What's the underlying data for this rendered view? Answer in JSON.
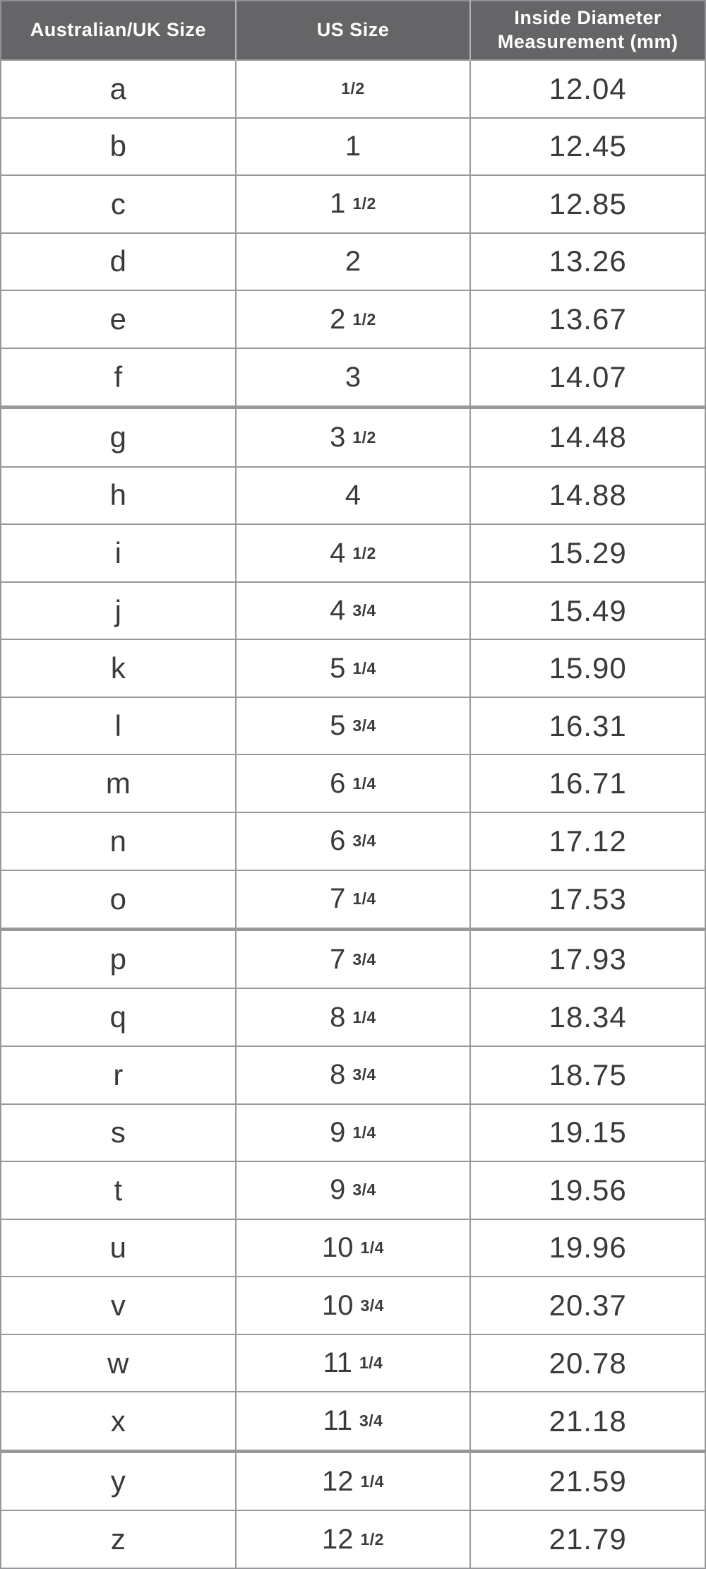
{
  "table": {
    "columns": [
      "Australian/UK Size",
      "US Size",
      "Inside Diameter Measurement (mm)"
    ],
    "rows": [
      {
        "uk": "a",
        "us_whole": "",
        "us_frac": "1/2",
        "diameter_mm": "12.04"
      },
      {
        "uk": "b",
        "us_whole": "1",
        "us_frac": "",
        "diameter_mm": "12.45"
      },
      {
        "uk": "c",
        "us_whole": "1",
        "us_frac": "1/2",
        "diameter_mm": "12.85"
      },
      {
        "uk": "d",
        "us_whole": "2",
        "us_frac": "",
        "diameter_mm": "13.26"
      },
      {
        "uk": "e",
        "us_whole": "2",
        "us_frac": "1/2",
        "diameter_mm": "13.67"
      },
      {
        "uk": "f",
        "us_whole": "3",
        "us_frac": "",
        "diameter_mm": "14.07"
      },
      {
        "uk": "g",
        "us_whole": "3",
        "us_frac": "1/2",
        "diameter_mm": "14.48"
      },
      {
        "uk": "h",
        "us_whole": "4",
        "us_frac": "",
        "diameter_mm": "14.88"
      },
      {
        "uk": "i",
        "us_whole": "4",
        "us_frac": "1/2",
        "diameter_mm": "15.29"
      },
      {
        "uk": "j",
        "us_whole": "4",
        "us_frac": "3/4",
        "diameter_mm": "15.49"
      },
      {
        "uk": "k",
        "us_whole": "5",
        "us_frac": "1/4",
        "diameter_mm": "15.90"
      },
      {
        "uk": "l",
        "us_whole": "5",
        "us_frac": "3/4",
        "diameter_mm": "16.31"
      },
      {
        "uk": "m",
        "us_whole": "6",
        "us_frac": "1/4",
        "diameter_mm": "16.71"
      },
      {
        "uk": "n",
        "us_whole": "6",
        "us_frac": "3/4",
        "diameter_mm": "17.12"
      },
      {
        "uk": "o",
        "us_whole": "7",
        "us_frac": "1/4",
        "diameter_mm": "17.53"
      },
      {
        "uk": "p",
        "us_whole": "7",
        "us_frac": "3/4",
        "diameter_mm": "17.93"
      },
      {
        "uk": "q",
        "us_whole": "8",
        "us_frac": "1/4",
        "diameter_mm": "18.34"
      },
      {
        "uk": "r",
        "us_whole": "8",
        "us_frac": "3/4",
        "diameter_mm": "18.75"
      },
      {
        "uk": "s",
        "us_whole": "9",
        "us_frac": "1/4",
        "diameter_mm": "19.15"
      },
      {
        "uk": "t",
        "us_whole": "9",
        "us_frac": "3/4",
        "diameter_mm": "19.56"
      },
      {
        "uk": "u",
        "us_whole": "10",
        "us_frac": "1/4",
        "diameter_mm": "19.96"
      },
      {
        "uk": "v",
        "us_whole": "10",
        "us_frac": "3/4",
        "diameter_mm": "20.37"
      },
      {
        "uk": "w",
        "us_whole": "11",
        "us_frac": "1/4",
        "diameter_mm": "20.78"
      },
      {
        "uk": "x",
        "us_whole": "11",
        "us_frac": "3/4",
        "diameter_mm": "21.18"
      },
      {
        "uk": "y",
        "us_whole": "12",
        "us_frac": "1/4",
        "diameter_mm": "21.59"
      },
      {
        "uk": "z",
        "us_whole": "12",
        "us_frac": "1/2",
        "diameter_mm": "21.79"
      }
    ]
  },
  "colors": {
    "header_background": "#656568",
    "header_text": "#ffffff",
    "grid_line": "#98989b",
    "body_text": "#3a3a3d"
  }
}
